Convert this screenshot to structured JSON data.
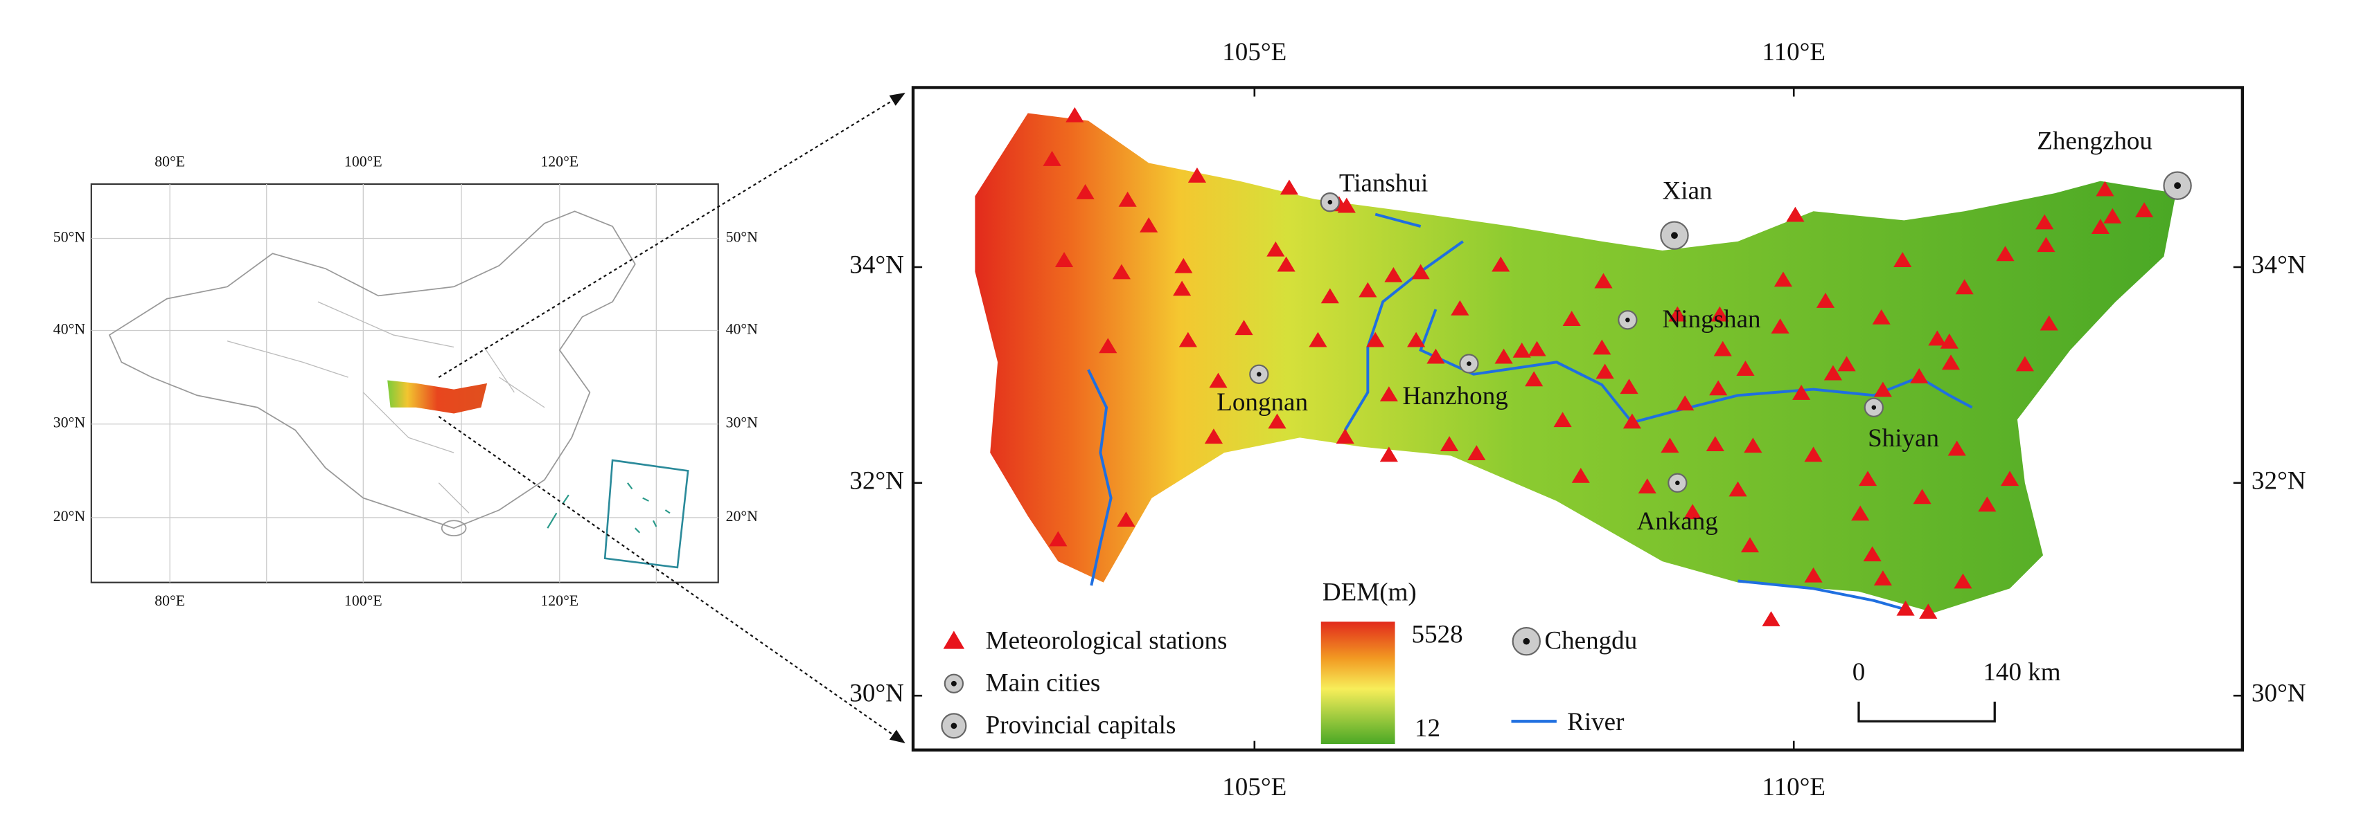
{
  "inset_map": {
    "x_labels_top": [
      "80°E",
      "100°E",
      "120°E"
    ],
    "x_labels_bottom": [
      "80°E",
      "100°E",
      "120°E"
    ],
    "y_labels_left": [
      "50°N",
      "40°N",
      "30°N",
      "20°N"
    ],
    "y_labels_right": [
      "50°N",
      "40°N",
      "30°N",
      "20°N"
    ]
  },
  "main_map": {
    "x_labels_top": [
      "105°E",
      "110°E"
    ],
    "x_labels_bottom": [
      "105°E",
      "110°E"
    ],
    "y_labels_left": [
      "34°N",
      "32°N",
      "30°N"
    ],
    "y_labels_right": [
      "34°N",
      "32°N",
      "30°N"
    ],
    "provincial_capitals": [
      "Xian",
      "Zhengzhou"
    ],
    "main_cities": [
      "Tianshui",
      "Ningshan",
      "Longnan",
      "Hanzhong",
      "Shiyan",
      "Ankang"
    ]
  },
  "legend": {
    "stations": "Meteorological stations",
    "main_cities": "Main cities",
    "provincial_capitals": "Provincial capitals",
    "dem_title": "DEM(m)",
    "dem_max": "5528",
    "dem_min": "12",
    "capital_example": "Chengdu",
    "river": "River",
    "scale_start": "0",
    "scale_end": "140 km"
  }
}
